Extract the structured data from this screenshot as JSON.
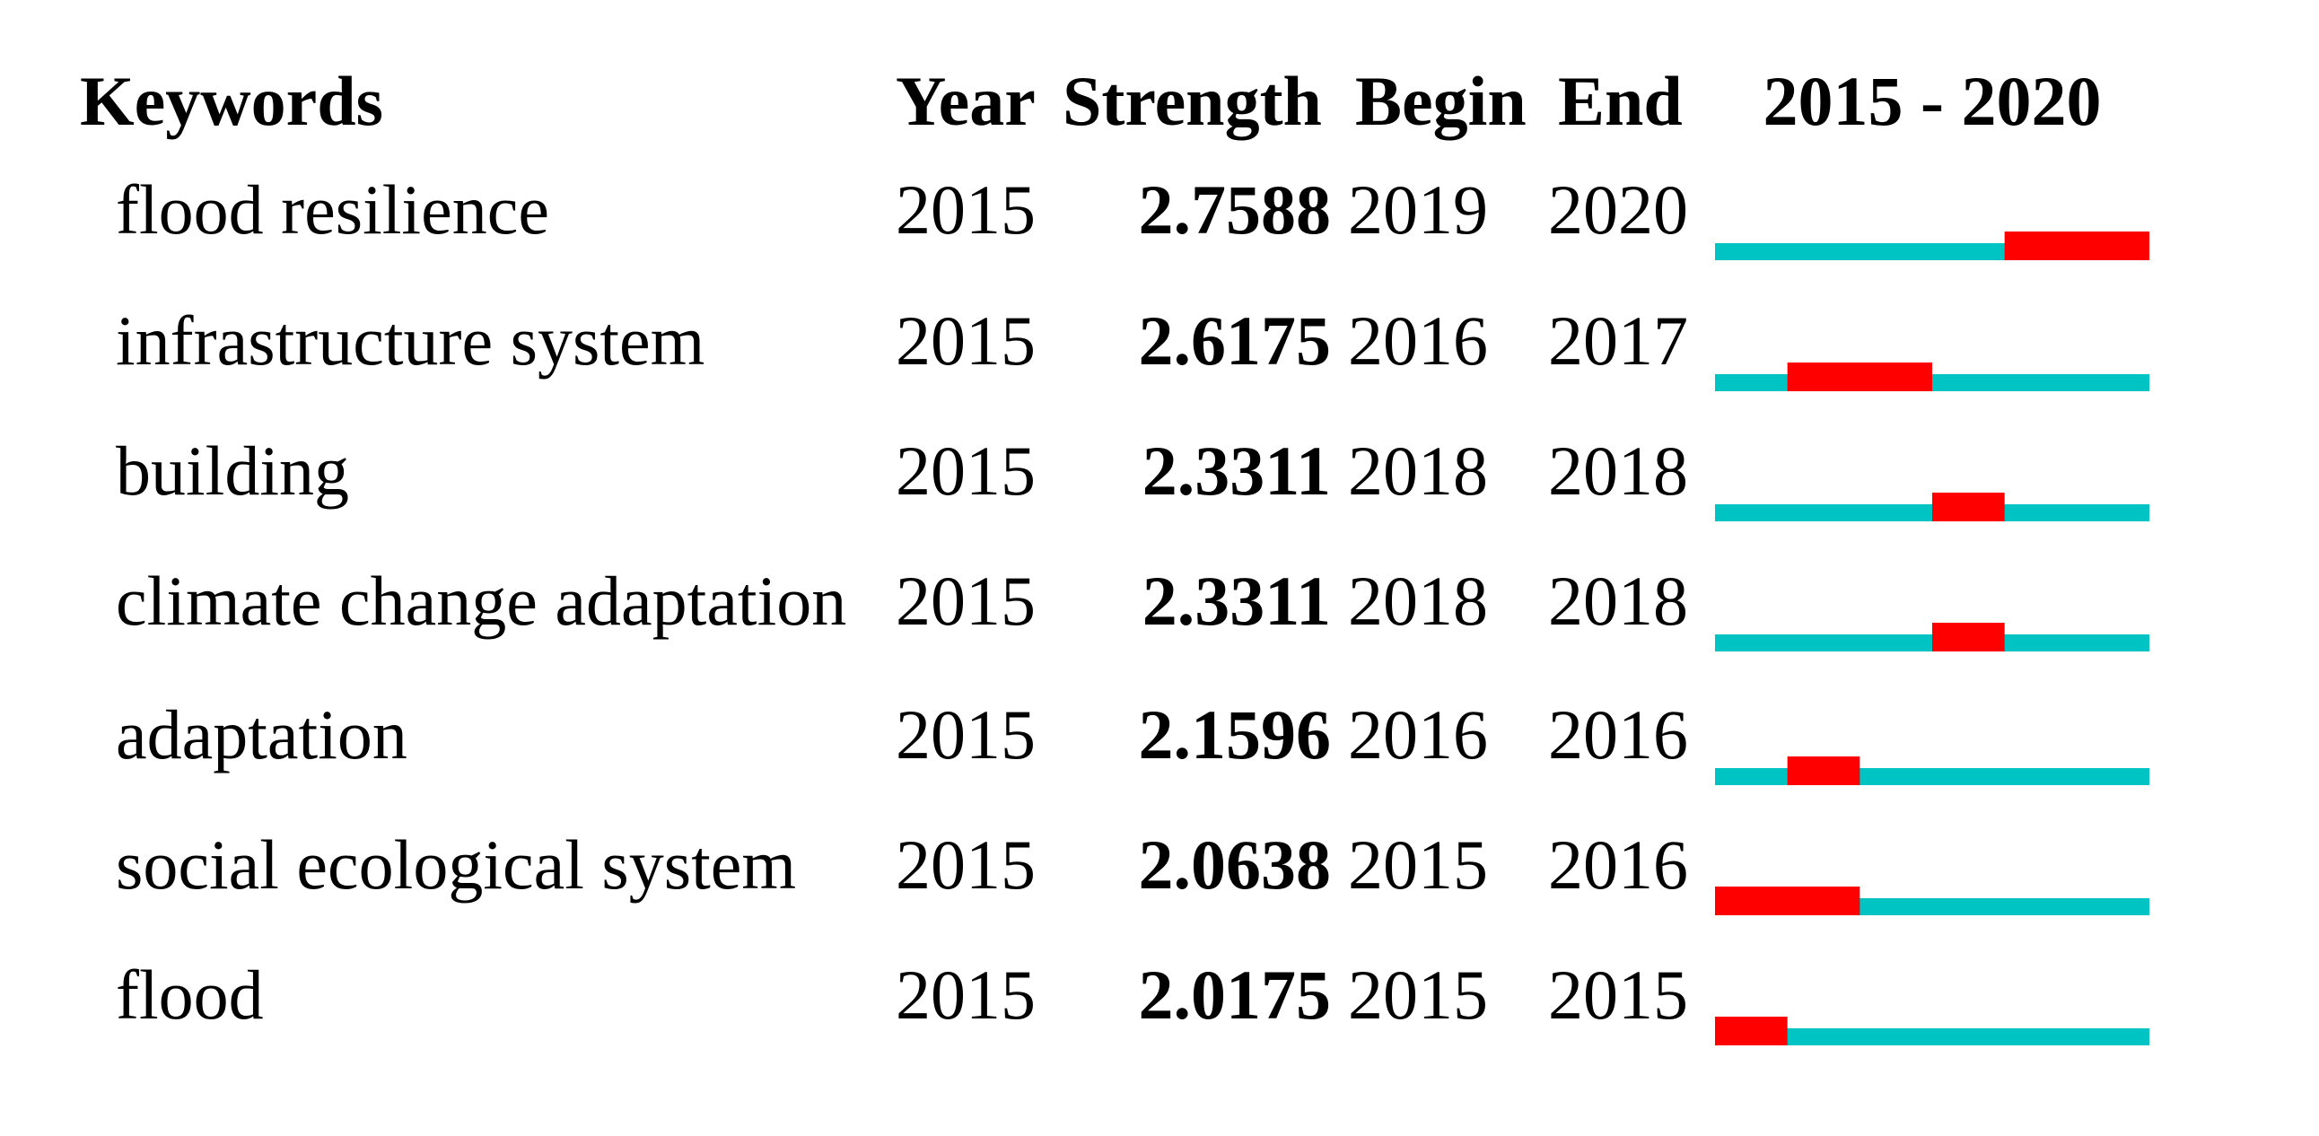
{
  "header": {
    "keywords": "Keywords",
    "year": "Year",
    "strength": "Strength",
    "begin": "Begin",
    "end": "End",
    "timeline": "2015 - 2020"
  },
  "rows": [
    {
      "keyword": "flood resilience",
      "year": 2015,
      "strength": 2.7588,
      "begin": 2019,
      "end": 2020
    },
    {
      "keyword": "infrastructure system",
      "year": 2015,
      "strength": 2.6175,
      "begin": 2016,
      "end": 2017
    },
    {
      "keyword": "building",
      "year": 2015,
      "strength": 2.3311,
      "begin": 2018,
      "end": 2018
    },
    {
      "keyword": "climate change adaptation",
      "year": 2015,
      "strength": 2.3311,
      "begin": 2018,
      "end": 2018
    },
    {
      "keyword": "adaptation",
      "year": 2015,
      "strength": 2.1596,
      "begin": 2016,
      "end": 2016
    },
    {
      "keyword": "social ecological system",
      "year": 2015,
      "strength": 2.0638,
      "begin": 2015,
      "end": 2016
    },
    {
      "keyword": "flood",
      "year": 2015,
      "strength": 2.0175,
      "begin": 2015,
      "end": 2015
    }
  ],
  "colors": {
    "timeline": "#00c4c4",
    "burst": "#ff0000"
  }
}
